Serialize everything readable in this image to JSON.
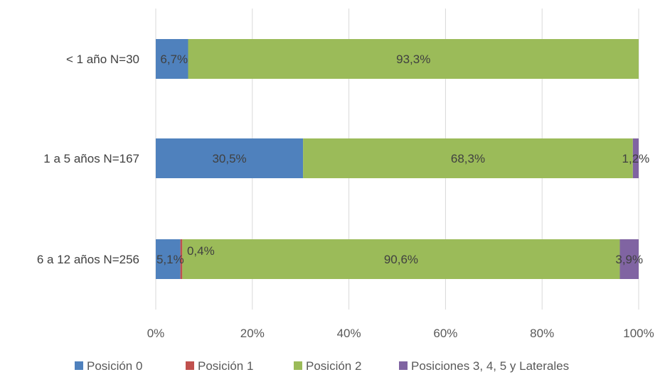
{
  "chart_data": {
    "type": "bar",
    "orientation": "horizontal",
    "stacked": "percent",
    "categories": [
      "< 1 año N=30",
      "1 a 5 años N=167",
      "6 a 12 años  N=256"
    ],
    "series": [
      {
        "name": "Posición 0",
        "color": "#4f81bd",
        "values": [
          6.7,
          30.5,
          5.1
        ],
        "labels": [
          "6,7%",
          "30,5%",
          "5,1%"
        ]
      },
      {
        "name": "Posición 1",
        "color": "#c0504d",
        "values": [
          0,
          0,
          0.4
        ],
        "labels": [
          "",
          "",
          "0,4%"
        ]
      },
      {
        "name": "Posición 2",
        "color": "#9bbb59",
        "values": [
          93.3,
          68.3,
          90.6
        ],
        "labels": [
          "93,3%",
          "68,3%",
          "90,6%"
        ]
      },
      {
        "name": "Posiciones 3, 4, 5 y Laterales",
        "color": "#8064a2",
        "values": [
          0,
          1.2,
          3.9
        ],
        "labels": [
          "",
          "1,2%",
          "3,9%"
        ]
      }
    ],
    "xlim": [
      0,
      100
    ],
    "xticks": [
      "0%",
      "20%",
      "40%",
      "60%",
      "80%",
      "100%"
    ],
    "grid": true,
    "legend_position": "bottom"
  }
}
